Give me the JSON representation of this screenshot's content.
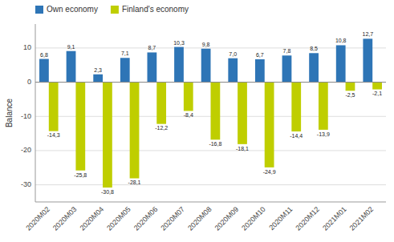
{
  "chart_data": {
    "type": "bar",
    "categories": [
      "2020M02",
      "2020M03",
      "2020M04",
      "2020M05",
      "2020M06",
      "2020M07",
      "2020M08",
      "2020M09",
      "2020M10",
      "2020M11",
      "2020M12",
      "2021M01",
      "2021M02"
    ],
    "series": [
      {
        "name": "Own economy",
        "color": "#2E75B6",
        "values": [
          6.8,
          9.1,
          2.3,
          7.1,
          8.7,
          10.3,
          9.8,
          7.0,
          6.7,
          7.8,
          8.5,
          10.8,
          12.7
        ],
        "value_labels": [
          "6,8",
          "9,1",
          "2,3",
          "7,1",
          "8,7",
          "10,3",
          "9,8",
          "7,0",
          "6,7",
          "7,8",
          "8,5",
          "10,8",
          "12,7"
        ]
      },
      {
        "name": "Finland's economy",
        "color": "#BFCE00",
        "values": [
          -14.3,
          -25.8,
          -30.8,
          -28.1,
          -12.2,
          -8.4,
          -16.8,
          -18.1,
          -24.9,
          -14.4,
          -13.9,
          -2.5,
          -2.1
        ],
        "value_labels": [
          "-14,3",
          "-25,8",
          "-30,8",
          "-28,1",
          "-12,2",
          "-8,4",
          "-16,8",
          "-18,1",
          "-24,9",
          "-14,4",
          "-13,9",
          "-2,5",
          "-2,1"
        ]
      }
    ],
    "y_label": "Balance",
    "ylim": [
      -35,
      17
    ],
    "yticks": [
      -30,
      -20,
      -10,
      0,
      10
    ],
    "grid": true,
    "legend": "top-left",
    "data_labels": true
  }
}
